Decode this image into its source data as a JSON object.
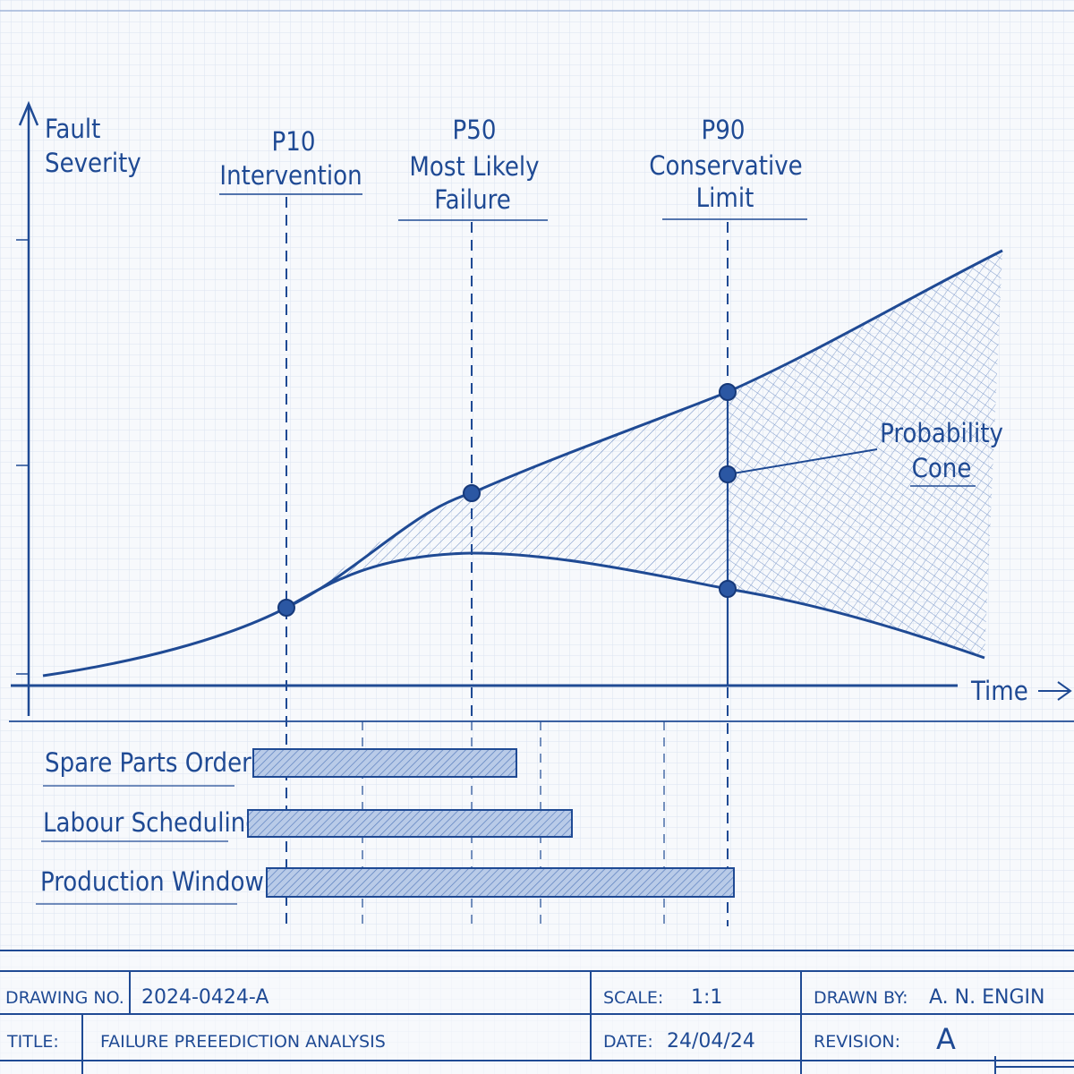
{
  "axes": {
    "y_label_line1": "Fault",
    "y_label_line2": "Severity",
    "x_label": "Time"
  },
  "markers": [
    {
      "line1": "P10",
      "line2": "Intervention",
      "line3": ""
    },
    {
      "line1": "P50",
      "line2": "Most Likely",
      "line3": "Failure"
    },
    {
      "line1": "P90",
      "line2": "Conservative",
      "line3": "Limit"
    }
  ],
  "cone_label": {
    "line1": "Probability",
    "line2": "Cone"
  },
  "tasks": [
    {
      "label": "Spare Parts Order"
    },
    {
      "label": "Labour Scheduling"
    },
    {
      "label": "Production Window"
    }
  ],
  "title_block": {
    "drawing_no_label": "DRAWING NO.",
    "drawing_no": "2024-0424-A",
    "scale_label": "SCALE:",
    "scale": "1:1",
    "drawn_by_label": "DRAWN BY:",
    "drawn_by": "A. N. ENGIN",
    "title_label": "TITLE:",
    "title": "FAILURE PREEEDICTION ANALYSIS",
    "date_label": "DATE:",
    "date": "24/04/24",
    "revision_label": "REVISION:",
    "revision": "A"
  },
  "colors": {
    "ink": "#1f4a94",
    "grid": "#d6e1f0",
    "paper": "#f7f9fc"
  }
}
